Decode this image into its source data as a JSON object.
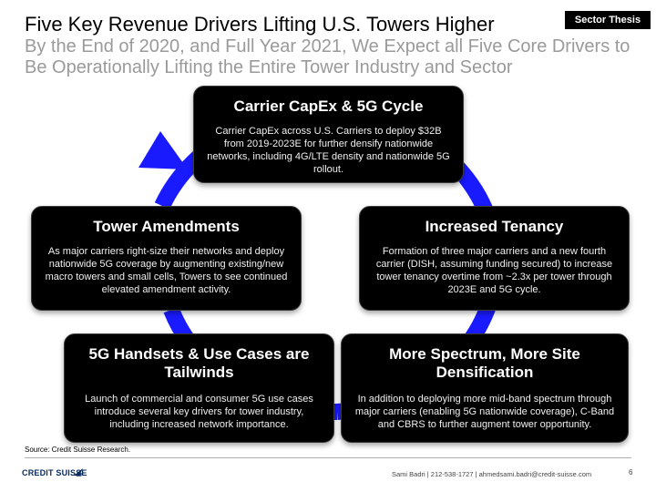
{
  "header": {
    "title": "Five Key Revenue Drivers Lifting U.S. Towers Higher",
    "subtitle": "By the End of 2020, and Full Year 2021, We Expect all Five Core Drivers to Be Operationally Lifting the Entire Tower Industry and Sector",
    "badge": "Sector Thesis"
  },
  "drivers": [
    {
      "heading": "Carrier CapEx & 5G Cycle",
      "body": "Carrier CapEx across U.S. Carriers to deploy $32B from 2019-2023E for further densify nationwide networks, including 4G/LTE density and nationwide 5G rollout."
    },
    {
      "heading": "Increased Tenancy",
      "body": "Formation of three major carriers and a new fourth carrier (DISH, assuming funding secured) to increase tower tenancy overtime from ~2.3x per tower through 2023E and 5G cycle."
    },
    {
      "heading": "More Spectrum, More Site Densification",
      "body": "In addition to deploying more mid-band spectrum through major carriers (enabling 5G nationwide coverage), C-Band and CBRS to further augment tower opportunity."
    },
    {
      "heading": "5G Handsets & Use Cases are Tailwinds",
      "body": "Launch of commercial and consumer 5G use cases introduce several key drivers for tower industry, including increased network importance."
    },
    {
      "heading": "Tower Amendments",
      "body": "As major carriers right-size their networks and deploy nationwide 5G coverage by augmenting existing/new macro towers and small cells, Towers to see continued elevated amendment activity."
    }
  ],
  "colors": {
    "cycle_arrow": "#1a1aff",
    "box_background": "#000000",
    "subtitle": "#9a9a9a"
  },
  "footer": {
    "source": "Source: Credit Suisse Research.",
    "logo_text": "CREDIT SUISSE",
    "contact": "Sami Badri | 212-538-1727 | ahmedsami.badri@credit-suisse.com",
    "page_number": "6"
  }
}
